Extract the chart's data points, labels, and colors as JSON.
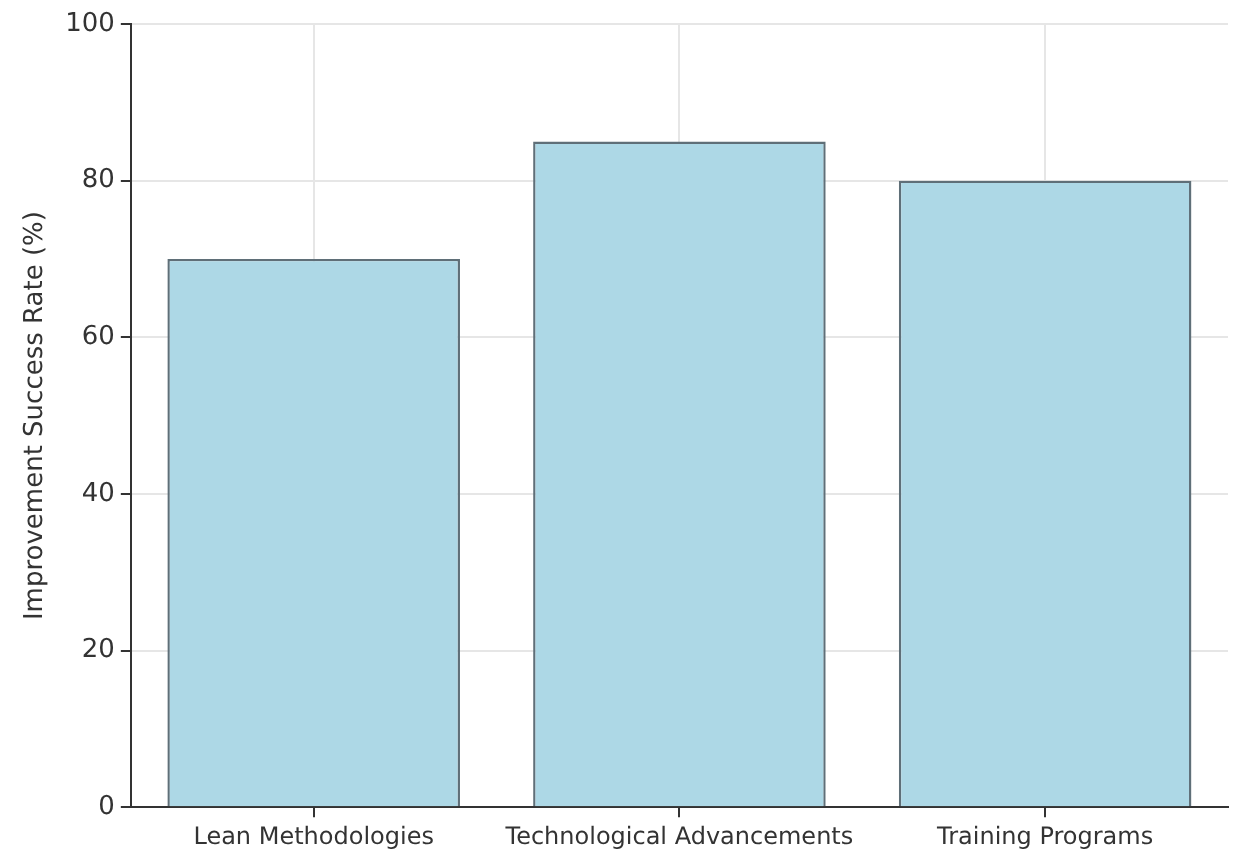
{
  "chart_data": {
    "type": "bar",
    "ylabel": "Improvement Success Rate (%)",
    "categories": [
      "Lean Methodologies",
      "Technological Advancements",
      "Training Programs"
    ],
    "values": [
      70,
      85,
      80
    ],
    "color": "#add8e6",
    "ylim": [
      0,
      100
    ],
    "yticks": [
      0,
      20,
      40,
      60,
      80,
      100
    ],
    "grid": true
  }
}
